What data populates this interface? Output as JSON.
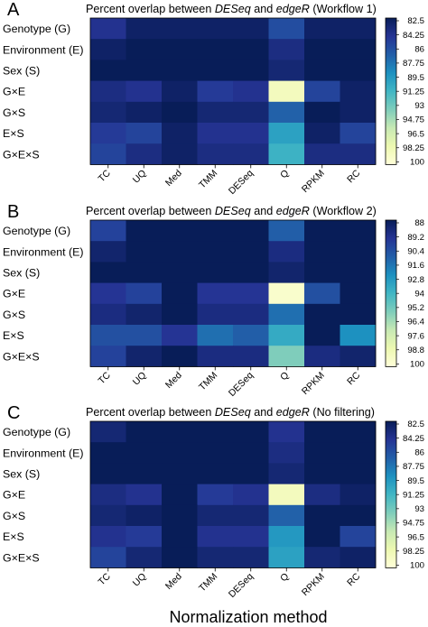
{
  "figure": {
    "xlabel": "Normalization method"
  },
  "colorscale": [
    "#081d58",
    "#253494",
    "#225ea8",
    "#1d91c0",
    "#41b6c4",
    "#7fcdbb",
    "#c7e9b4",
    "#edf8b1",
    "#ffffd9"
  ],
  "chart_data": [
    {
      "type": "heatmap",
      "panel_label": "A",
      "title_parts": [
        "Percent overlap between ",
        "DESeq",
        " and ",
        "edgeR",
        " (Workflow 1)"
      ],
      "x_categories": [
        "TC",
        "UQ",
        "Med",
        "TMM",
        "DESeq",
        "Q",
        "RPKM",
        "RC"
      ],
      "y_categories": [
        "Genotype (G)",
        "Environment (E)",
        "Sex (S)",
        "G×E",
        "G×S",
        "E×S",
        "G×E×S"
      ],
      "colorbar_ticks": [
        "82.5",
        "84.25",
        "86",
        "87.75",
        "89.5",
        "91.25",
        "93",
        "94.75",
        "96.5",
        "98.25",
        "100"
      ],
      "range": [
        82.5,
        100
      ],
      "values": [
        [
          98.0,
          99.5,
          99.5,
          99.5,
          99.5,
          96.5,
          99.5,
          99.5
        ],
        [
          99.5,
          100,
          100,
          100,
          100,
          98.5,
          100,
          100
        ],
        [
          100,
          100,
          100,
          100,
          100,
          99.0,
          100,
          100
        ],
        [
          98.5,
          98.0,
          99.5,
          97.5,
          98.0,
          84.0,
          97.0,
          99.5
        ],
        [
          99.0,
          99.5,
          100,
          99.0,
          99.0,
          95.5,
          100,
          99.5
        ],
        [
          97.5,
          97.0,
          99.5,
          98.0,
          98.0,
          92.5,
          99.5,
          97.0
        ],
        [
          97.0,
          98.5,
          99.5,
          98.5,
          98.5,
          91.5,
          98.5,
          98.5
        ]
      ]
    },
    {
      "type": "heatmap",
      "panel_label": "B",
      "title_parts": [
        "Percent overlap between ",
        "DESeq",
        " and ",
        "edgeR",
        " (Workflow 2)"
      ],
      "x_categories": [
        "TC",
        "UQ",
        "Med",
        "TMM",
        "DESeq",
        "Q",
        "RPKM",
        "RC"
      ],
      "y_categories": [
        "Genotype (G)",
        "Environment (E)",
        "Sex (S)",
        "G×E",
        "G×S",
        "E×S",
        "G×E×S"
      ],
      "colorbar_ticks": [
        "88",
        "89.2",
        "90.4",
        "91.6",
        "92.8",
        "94",
        "95.2",
        "96.4",
        "97.6",
        "98.8",
        "100"
      ],
      "range": [
        88,
        100
      ],
      "values": [
        [
          98.0,
          100,
          100,
          100,
          100,
          97.0,
          100,
          100
        ],
        [
          99.5,
          100,
          100,
          100,
          100,
          99.0,
          100,
          100
        ],
        [
          100,
          100,
          100,
          100,
          100,
          99.5,
          100,
          100
        ],
        [
          98.5,
          98.0,
          100,
          98.5,
          98.5,
          88.5,
          97.5,
          100
        ],
        [
          99.0,
          99.5,
          100,
          99.0,
          99.0,
          96.5,
          100,
          100
        ],
        [
          97.5,
          97.5,
          98.5,
          96.5,
          97.0,
          94.5,
          100,
          95.5
        ],
        [
          98.0,
          99.5,
          100,
          99.0,
          99.0,
          92.5,
          99.0,
          99.5
        ]
      ]
    },
    {
      "type": "heatmap",
      "panel_label": "C",
      "title_parts": [
        "Percent overlap between ",
        "DESeq",
        " and ",
        "edgeR",
        " (No filtering)"
      ],
      "x_categories": [
        "TC",
        "UQ",
        "Med",
        "TMM",
        "DESeq",
        "Q",
        "RPKM",
        "RC"
      ],
      "y_categories": [
        "Genotype (G)",
        "Environment (E)",
        "Sex (S)",
        "G×E",
        "G×S",
        "E×S",
        "G×E×S"
      ],
      "colorbar_ticks": [
        "82.5",
        "84.25",
        "86",
        "87.75",
        "89.5",
        "91.25",
        "93",
        "94.75",
        "96.5",
        "98.25",
        "100"
      ],
      "range": [
        82.5,
        100
      ],
      "values": [
        [
          99.0,
          100,
          100,
          100,
          100,
          98.0,
          100,
          100
        ],
        [
          100,
          100,
          100,
          100,
          100,
          98.5,
          100,
          100
        ],
        [
          100,
          100,
          100,
          100,
          100,
          99.0,
          100,
          100
        ],
        [
          98.5,
          98.0,
          100,
          97.5,
          98.0,
          84.0,
          98.5,
          99.5
        ],
        [
          99.0,
          99.5,
          100,
          99.0,
          99.0,
          95.5,
          100,
          100
        ],
        [
          98.0,
          97.5,
          100,
          98.0,
          98.0,
          93.0,
          100,
          97.0
        ],
        [
          97.0,
          99.0,
          100,
          99.0,
          99.0,
          92.5,
          99.0,
          99.5
        ]
      ]
    }
  ]
}
